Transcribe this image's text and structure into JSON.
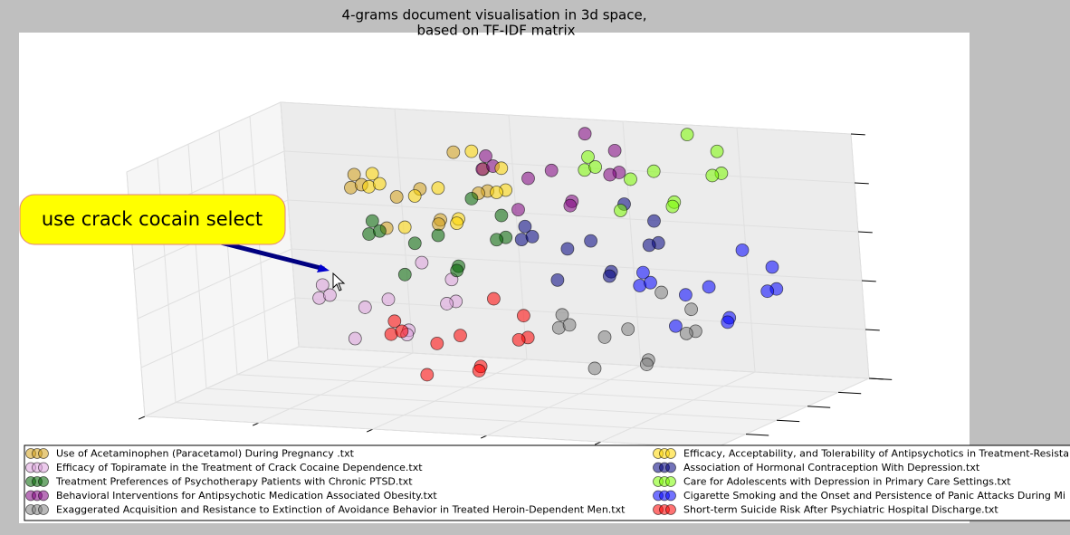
{
  "chart_data": {
    "type": "scatter3d",
    "title": [
      "4-grams document visualisation in 3d space,",
      "based on TF-IDF matrix"
    ],
    "annotation": "use crack cocain select",
    "xlim": [
      0,
      10
    ],
    "ylim": [
      0,
      10
    ],
    "zlim": [
      0,
      10
    ],
    "xticks": [
      0,
      2,
      4,
      6,
      8,
      10
    ],
    "yticks": [
      0,
      2,
      4,
      6,
      8,
      10
    ],
    "zticks": [
      0,
      2,
      4,
      6,
      8,
      10
    ],
    "grid": true,
    "legend": "bottom",
    "legend_columns": 2,
    "series": [
      {
        "name": "Use of Acetaminophen (Paracetamol) During Pregnancy .txt",
        "color": "#d4a017",
        "x": [
          2.9,
          3.9,
          1.9,
          3.5,
          2.2,
          4.2,
          1.6,
          3.2,
          2.6,
          3.7,
          2.1,
          3.1
        ],
        "y": [
          8,
          8.5,
          7.5,
          7,
          9,
          7.6,
          8.3,
          9.2,
          6.8,
          8.8,
          7.2,
          8.3
        ],
        "z": [
          7.4,
          8.2,
          8,
          6.5,
          6.7,
          7.6,
          7.2,
          8.6,
          6.1,
          7.1,
          7.7,
          5.9
        ]
      },
      {
        "name": "Efficacy of Topiramate in the Treatment of Crack Cocaine Dependence.txt",
        "color": "#dda0dd",
        "x": [
          3.6,
          4.6,
          2.6,
          4.2,
          2.9,
          4.9,
          2.3,
          3.9,
          3.3,
          4.4,
          2.8,
          3.8
        ],
        "y": [
          3,
          3.5,
          2.5,
          2,
          4,
          2.6,
          3.3,
          4.2,
          1.8,
          3.8,
          2.2,
          3.3
        ],
        "z": [
          4.4,
          5.2,
          5,
          3.5,
          3.7,
          4.6,
          4.2,
          5.6,
          3.1,
          4.1,
          4.7,
          2.9
        ]
      },
      {
        "name": "Treatment Preferences of Psychotherapy Patients with Chronic PTSD.txt",
        "color": "#006400",
        "x": [
          4,
          5,
          3,
          4.6,
          3.3,
          5.3,
          2.7,
          4.3,
          3.7,
          4.8,
          3.2,
          4.2
        ],
        "y": [
          5,
          5.5,
          4.5,
          4,
          6,
          4.6,
          5.3,
          6.2,
          3.8,
          5.8,
          4.2,
          5.3
        ],
        "z": [
          6.5,
          7.3,
          7.1,
          5.6,
          5.8,
          6.7,
          6.3,
          7.7,
          5.2,
          6.2,
          6.8,
          5
        ]
      },
      {
        "name": "Behavioral Interventions for Antipsychotic Medication Associated Obesity.txt",
        "color": "#800080",
        "x": [
          5.1,
          6.1,
          4.1,
          5.7,
          4.4,
          6.4,
          3.8,
          5.4,
          4.8,
          5.9,
          4.3,
          5.3
        ],
        "y": [
          8.5,
          9,
          8,
          7.5,
          9.5,
          8.1,
          8.8,
          9.7,
          7.3,
          9.3,
          7.7,
          8.8
        ],
        "z": [
          8.3,
          9.1,
          8.9,
          7.4,
          7.6,
          8.5,
          8.1,
          9.5,
          7,
          8,
          8.6,
          6.8
        ]
      },
      {
        "name": "Exaggerated Acquisition and Resistance to Extinction of Avoidance Behavior in Treated Heroin-Dependent Men.txt",
        "color": "#808080",
        "x": [
          7.5,
          8.5,
          6.5,
          8.1,
          6.8,
          8.8,
          6.2,
          7.8,
          7.2,
          8.3,
          6.7,
          7.7
        ],
        "y": [
          4,
          4.5,
          3.5,
          3,
          5,
          3.6,
          4.3,
          5.2,
          2.8,
          4.8,
          3.2,
          4.3
        ],
        "z": [
          3.4,
          4.2,
          4,
          2.5,
          2.7,
          3.6,
          3.2,
          4.6,
          2.1,
          3.1,
          3.7,
          1.9
        ]
      },
      {
        "name": "Efficacy, Acceptability, and Tolerability of Antipsychotics in Treatment-Resistant",
        "color": "#ffd700",
        "x": [
          3.5,
          4.5,
          2.5,
          4.1,
          2.8,
          4.8,
          2.2,
          3.8,
          3.2,
          4.3,
          2.7,
          3.7
        ],
        "y": [
          7,
          7.5,
          6.5,
          6,
          8,
          6.6,
          7.3,
          8.2,
          5.8,
          7.8,
          6.2,
          7.3
        ],
        "z": [
          7.8,
          8.6,
          8.4,
          6.9,
          7.1,
          8,
          7.6,
          9,
          6.5,
          7.5,
          8.1,
          6.3
        ]
      },
      {
        "name": "Association of Hormonal Contraception With Depression.txt",
        "color": "#000080",
        "x": [
          6.4,
          7.4,
          5.4,
          7,
          5.7,
          7.7,
          5.1,
          6.7,
          6.1,
          7.2,
          5.6,
          6.6
        ],
        "y": [
          6,
          6.5,
          5.5,
          5,
          7,
          5.6,
          6.3,
          7.2,
          4.8,
          6.8,
          5.2,
          6.3
        ],
        "z": [
          6.3,
          7.1,
          6.9,
          5.4,
          5.6,
          6.5,
          6.1,
          7.5,
          5,
          6,
          6.6,
          4.8
        ]
      },
      {
        "name": "Care for Adolescents with Depression in Primary Care Settings.txt",
        "color": "#7cfc00",
        "x": [
          6.9,
          7.9,
          5.9,
          7.5,
          6.2,
          8.2,
          5.6,
          7.2,
          6.6,
          7.7,
          6.1,
          7.1
        ],
        "y": [
          8.5,
          9,
          8,
          7.5,
          9.5,
          8.1,
          8.8,
          9.7,
          7.3,
          9.3,
          7.7,
          8.8
        ],
        "z": [
          8.5,
          9.3,
          9.1,
          7.6,
          7.8,
          8.7,
          8.3,
          9.7,
          7.2,
          8.2,
          8.8,
          7
        ]
      },
      {
        "name": "Cigarette Smoking and the Onset and Persistence of Panic Attacks During Mi",
        "color": "#0000ff",
        "x": [
          8.7,
          9.7,
          7.7,
          9.3,
          8,
          10,
          7.4,
          9,
          8.4,
          9.5,
          7.9,
          8.9
        ],
        "y": [
          5,
          5.5,
          4.5,
          4,
          6,
          4.6,
          5.3,
          6.2,
          3.8,
          5.8,
          4.2,
          5.3
        ],
        "z": [
          5,
          5.8,
          5.6,
          4.1,
          4.3,
          5.2,
          4.8,
          6.2,
          3.7,
          4.7,
          5.3,
          3.5
        ]
      },
      {
        "name": "Short-term Suicide Risk After Psychiatric Hospital Discharge.txt",
        "color": "#ff0000",
        "x": [
          5.1,
          6.1,
          4.1,
          5.7,
          4.4,
          6.4,
          3.8,
          5.4,
          4.8,
          5.9,
          4.3,
          5.3
        ],
        "y": [
          2,
          2.5,
          1.5,
          1,
          3,
          1.6,
          2.3,
          3.2,
          0.8,
          2.8,
          1.2,
          2.3
        ],
        "z": [
          3.4,
          4.2,
          4,
          2.5,
          2.7,
          3.6,
          3.2,
          4.6,
          2.1,
          3.1,
          3.7,
          1.9
        ]
      }
    ]
  }
}
